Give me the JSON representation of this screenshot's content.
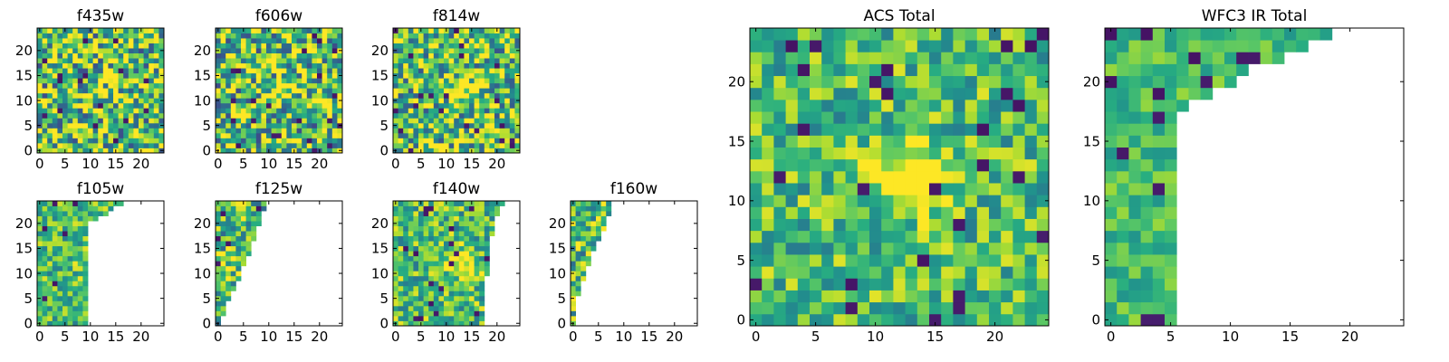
{
  "chart_data": [
    {
      "type": "heatmap",
      "title": "f435w",
      "xticks": [
        0,
        5,
        10,
        15,
        20
      ],
      "yticks": [
        0,
        5,
        10,
        15,
        20
      ],
      "xlim": [
        -0.5,
        24.5
      ],
      "ylim": [
        -0.5,
        24.5
      ],
      "size": 25,
      "source_center": [
        13,
        12
      ],
      "source_strength": 0.1,
      "noise": 0.6,
      "seed": 3,
      "missing_edge": "none"
    },
    {
      "type": "heatmap",
      "title": "f606w",
      "xticks": [
        0,
        5,
        10,
        15,
        20
      ],
      "yticks": [
        0,
        5,
        10,
        15,
        20
      ],
      "xlim": [
        -0.5,
        24.5
      ],
      "ylim": [
        -0.5,
        24.5
      ],
      "size": 25,
      "source_center": [
        13,
        12
      ],
      "source_strength": 0.3,
      "noise": 0.6,
      "seed": 7,
      "missing_edge": "none"
    },
    {
      "type": "heatmap",
      "title": "f814w",
      "xticks": [
        0,
        5,
        10,
        15,
        20
      ],
      "yticks": [
        0,
        5,
        10,
        15,
        20
      ],
      "xlim": [
        -0.5,
        24.5
      ],
      "ylim": [
        -0.5,
        24.5
      ],
      "size": 25,
      "source_center": [
        13,
        12
      ],
      "source_strength": 0.45,
      "noise": 0.55,
      "seed": 11,
      "missing_edge": "none"
    },
    {
      "type": "heatmap",
      "title": "f105w",
      "xticks": [
        0,
        5,
        10,
        15,
        20
      ],
      "yticks": [
        0,
        5,
        10,
        15,
        20
      ],
      "xlim": [
        -0.5,
        24.5
      ],
      "ylim": [
        -0.5,
        24.5
      ],
      "size": 25,
      "source_center": [
        12,
        12
      ],
      "source_strength": 0.45,
      "noise": 0.35,
      "seed": 17,
      "missing_edge": [
        [
          25,
          20
        ],
        [
          25,
          17
        ],
        [
          24,
          16
        ],
        [
          22,
          13
        ],
        [
          21,
          10
        ]
      ]
    },
    {
      "type": "heatmap",
      "title": "f125w",
      "xticks": [
        0,
        5,
        10,
        15,
        20
      ],
      "yticks": [
        0,
        5,
        10,
        15,
        20
      ],
      "xlim": [
        -0.5,
        24.5
      ],
      "ylim": [
        -0.5,
        24.5
      ],
      "size": 25,
      "source_center": [
        7,
        11
      ],
      "source_strength": 0.25,
      "noise": 0.45,
      "seed": 23,
      "missing_edge": [
        [
          25,
          10
        ],
        [
          22,
          9
        ],
        [
          19,
          8
        ],
        [
          16,
          7
        ],
        [
          13,
          6
        ],
        [
          9,
          4.5
        ],
        [
          5,
          2.5
        ],
        [
          1,
          1
        ]
      ]
    },
    {
      "type": "heatmap",
      "title": "f140w",
      "xticks": [
        0,
        5,
        10,
        15,
        20
      ],
      "yticks": [
        0,
        5,
        10,
        15,
        20
      ],
      "xlim": [
        -0.5,
        24.5
      ],
      "ylim": [
        -0.5,
        24.5
      ],
      "size": 25,
      "source_center": [
        13,
        12
      ],
      "source_strength": 0.4,
      "noise": 0.38,
      "seed": 29,
      "missing_edge": [
        [
          25,
          22
        ],
        [
          23,
          21
        ],
        [
          21,
          20
        ],
        [
          16,
          19
        ],
        [
          10,
          18.5
        ],
        [
          3,
          18
        ]
      ]
    },
    {
      "type": "heatmap",
      "title": "f160w",
      "xticks": [
        0,
        5,
        10,
        15,
        20
      ],
      "yticks": [
        0,
        5,
        10,
        15,
        20
      ],
      "xlim": [
        -0.5,
        24.5
      ],
      "ylim": [
        -0.5,
        24.5
      ],
      "size": 25,
      "source_center": [
        9,
        12
      ],
      "source_strength": 0.25,
      "noise": 0.45,
      "seed": 31,
      "missing_edge": [
        [
          25,
          8
        ],
        [
          20,
          7
        ],
        [
          16,
          5
        ],
        [
          12,
          3.5
        ],
        [
          8,
          2
        ],
        [
          4,
          1
        ]
      ]
    },
    {
      "type": "heatmap",
      "title": "ACS Total",
      "xticks": [
        0,
        5,
        10,
        15,
        20
      ],
      "yticks": [
        0,
        5,
        10,
        15,
        20
      ],
      "xlim": [
        -0.5,
        24.5
      ],
      "ylim": [
        -0.5,
        24.5
      ],
      "size": 25,
      "source_center": [
        13,
        12
      ],
      "source_strength": 0.55,
      "noise": 0.35,
      "seed": 41,
      "missing_edge": "none"
    },
    {
      "type": "heatmap",
      "title": "WFC3 IR Total",
      "xticks": [
        0,
        5,
        10,
        15,
        20
      ],
      "yticks": [
        0,
        5,
        10,
        15,
        20
      ],
      "xlim": [
        -0.5,
        24.5
      ],
      "ylim": [
        -0.5,
        24.5
      ],
      "size": 25,
      "source_center": [
        12,
        12
      ],
      "source_strength": 0.55,
      "noise": 0.22,
      "seed": 53,
      "missing_edge": [
        [
          25,
          20
        ],
        [
          24,
          18
        ],
        [
          23,
          16
        ],
        [
          22,
          13
        ],
        [
          20,
          10
        ],
        [
          19,
          8
        ],
        [
          18,
          6
        ]
      ]
    }
  ]
}
